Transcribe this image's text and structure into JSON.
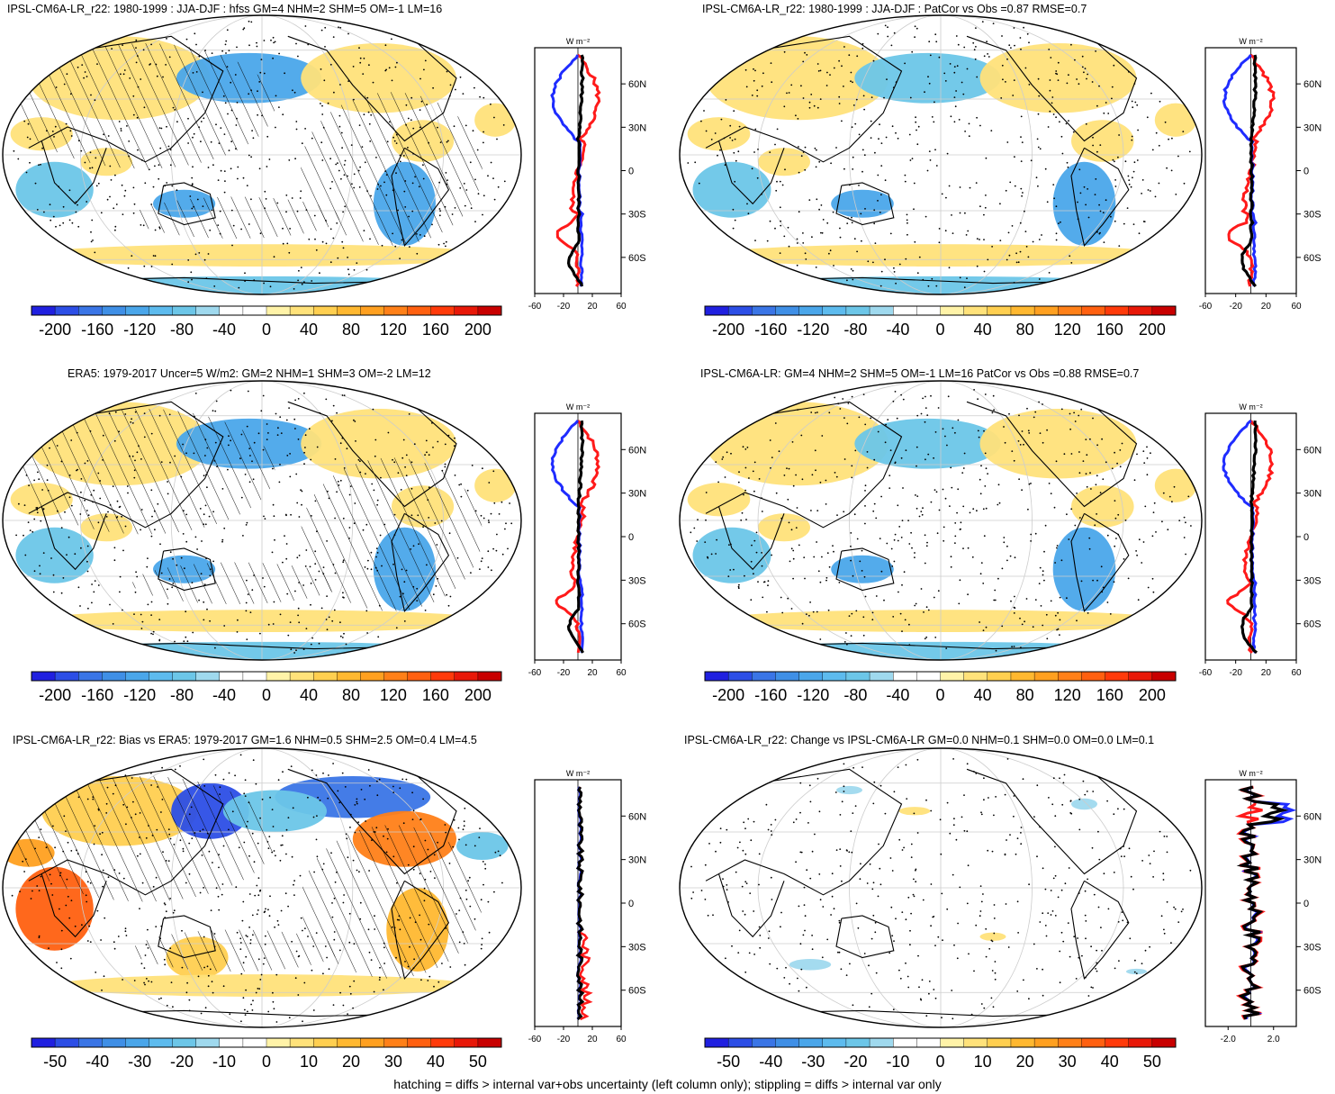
{
  "footer": "hatching = diffs > internal var+obs uncertainty (left column only); stippling = diffs > internal var only",
  "profile_unit": "W m⁻²",
  "lat_ticks": [
    "60N",
    "30N",
    "0",
    "30S",
    "60S"
  ],
  "colors": {
    "colorbar": [
      "#2020e0",
      "#2c4ee6",
      "#3a75e6",
      "#3f8fe6",
      "#4aa6ea",
      "#5dbbee",
      "#6cc6e8",
      "#9fd9ee",
      "#ffffff",
      "#ffffff",
      "#fff3a8",
      "#ffe27a",
      "#ffcf50",
      "#ffb830",
      "#ffa020",
      "#ff8018",
      "#ff6010",
      "#ff3a0a",
      "#e81808",
      "#c80000"
    ],
    "profile_red": "#ff1a1a",
    "profile_blue": "#1f2cff",
    "profile_black": "#000000",
    "coast": "#000000",
    "grid": "#cccccc"
  },
  "chart_data": [
    {
      "type": "heatmap",
      "title": "IPSL-CM6A-LR_r22: 1980-1999 : JJA-DJF : hfss GM=4 NHM=2 SHM=5 OM=-1 LM=16",
      "colorbar_ticks": [
        "-200",
        "-160",
        "-120",
        "-80",
        "-40",
        "0",
        "40",
        "80",
        "120",
        "160",
        "200"
      ],
      "profile_xticks": [
        "-60",
        "-20",
        "20",
        "60"
      ],
      "profile_xlim": [
        -60,
        60
      ],
      "hatched": true
    },
    {
      "type": "heatmap",
      "title": "IPSL-CM6A-LR_r22: 1980-1999 : JJA-DJF : PatCor vs Obs =0.87 RMSE=0.7",
      "colorbar_ticks": [
        "-200",
        "-160",
        "-120",
        "-80",
        "-40",
        "0",
        "40",
        "80",
        "120",
        "160",
        "200"
      ],
      "profile_xticks": [
        "-60",
        "-20",
        "20",
        "60"
      ],
      "profile_xlim": [
        -60,
        60
      ],
      "hatched": false
    },
    {
      "type": "heatmap",
      "title": "ERA5: 1979-2017 Uncer=5 W/m2: GM=2 NHM=1 SHM=3 OM=-2 LM=12",
      "colorbar_ticks": [
        "-200",
        "-160",
        "-120",
        "-80",
        "-40",
        "0",
        "40",
        "80",
        "120",
        "160",
        "200"
      ],
      "profile_xticks": [
        "-60",
        "-20",
        "20",
        "60"
      ],
      "profile_xlim": [
        -60,
        60
      ],
      "hatched": true
    },
    {
      "type": "heatmap",
      "title": "IPSL-CM6A-LR: GM=4 NHM=2 SHM=5 OM=-1 LM=16 PatCor vs Obs =0.88 RMSE=0.7",
      "colorbar_ticks": [
        "-200",
        "-160",
        "-120",
        "-80",
        "-40",
        "0",
        "40",
        "80",
        "120",
        "160",
        "200"
      ],
      "profile_xticks": [
        "-60",
        "-20",
        "20",
        "60"
      ],
      "profile_xlim": [
        -60,
        60
      ],
      "hatched": false
    },
    {
      "type": "heatmap",
      "title": "IPSL-CM6A-LR_r22: Bias vs ERA5: 1979-2017 GM=1.6 NHM=0.5 SHM=2.5 OM=0.4 LM=4.5",
      "colorbar_ticks": [
        "-50",
        "-40",
        "-30",
        "-20",
        "-10",
        "0",
        "10",
        "20",
        "30",
        "40",
        "50"
      ],
      "profile_xticks": [
        "-60",
        "-20",
        "20",
        "60"
      ],
      "profile_xlim": [
        -60,
        60
      ],
      "hatched": true
    },
    {
      "type": "heatmap",
      "title": "IPSL-CM6A-LR_r22: Change vs IPSL-CM6A-LR GM=0.0 NHM=0.1 SHM=0.0 OM=0.0 LM=0.1",
      "colorbar_ticks": [
        "-50",
        "-40",
        "-30",
        "-20",
        "-10",
        "0",
        "10",
        "20",
        "30",
        "40",
        "50"
      ],
      "profile_xticks": [
        "-2.0",
        "2.0"
      ],
      "profile_xlim": [
        -4,
        4
      ],
      "hatched": false
    }
  ]
}
